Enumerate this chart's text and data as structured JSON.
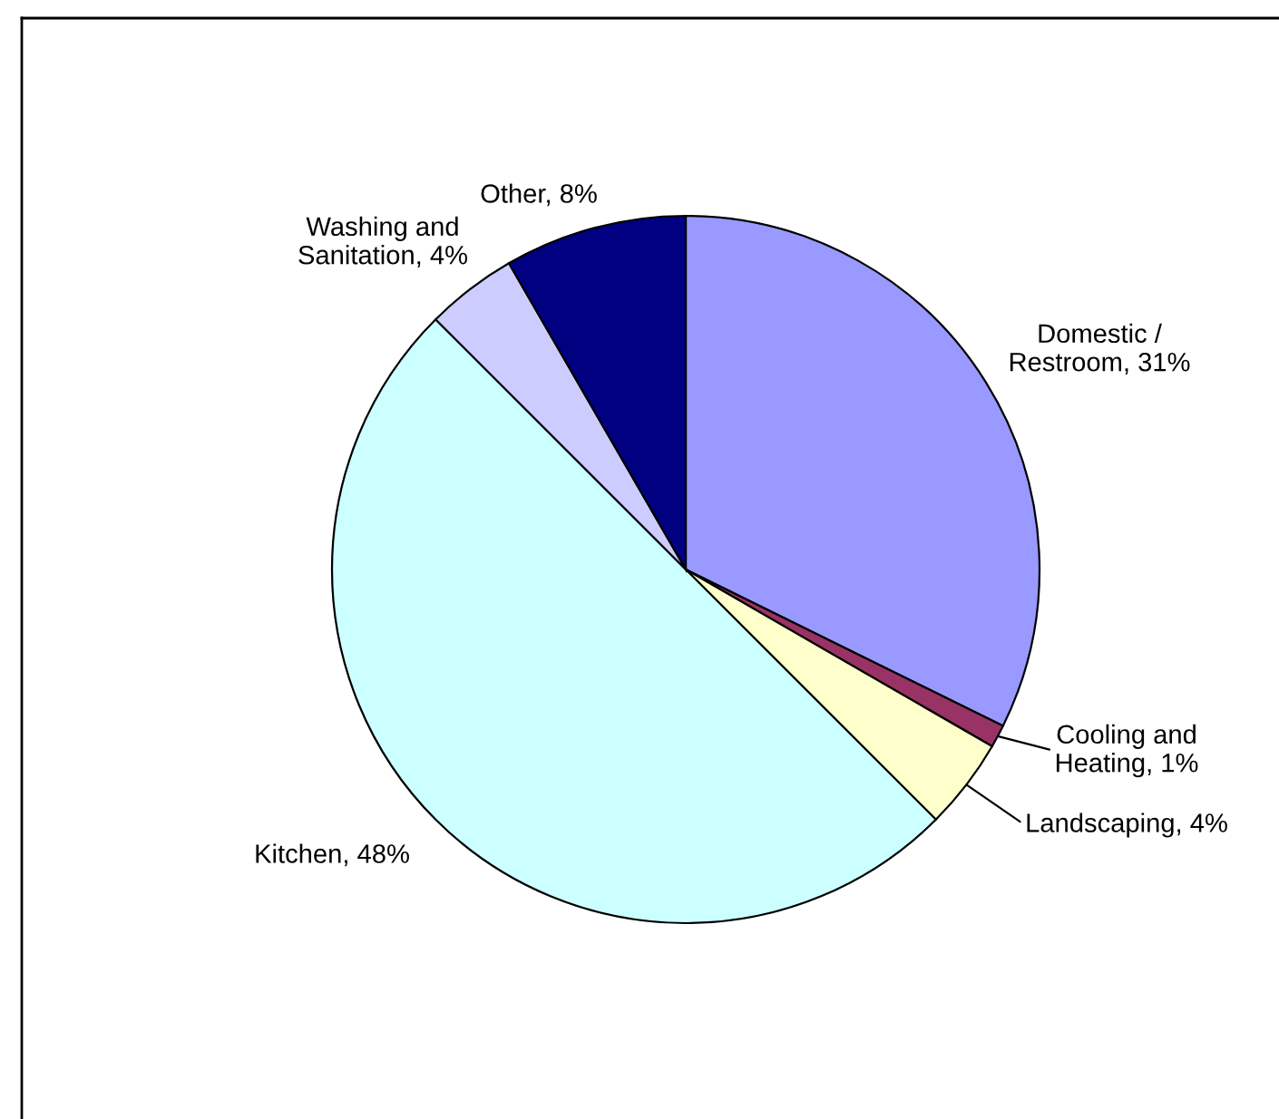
{
  "chart_data": {
    "type": "pie",
    "categories": [
      "Domestic /\nRestroom",
      "Cooling and\nHeating",
      "Landscaping",
      "Kitchen",
      "Washing and\nSanitation",
      "Other"
    ],
    "values": [
      31,
      1,
      4,
      48,
      4,
      8
    ],
    "colors": [
      "#9999ff",
      "#993366",
      "#ffffcc",
      "#ccffff",
      "#ccccff",
      "#000080"
    ],
    "value_labels": [
      "31%",
      "1%",
      "4%",
      "48%",
      "4%",
      "8%"
    ]
  }
}
